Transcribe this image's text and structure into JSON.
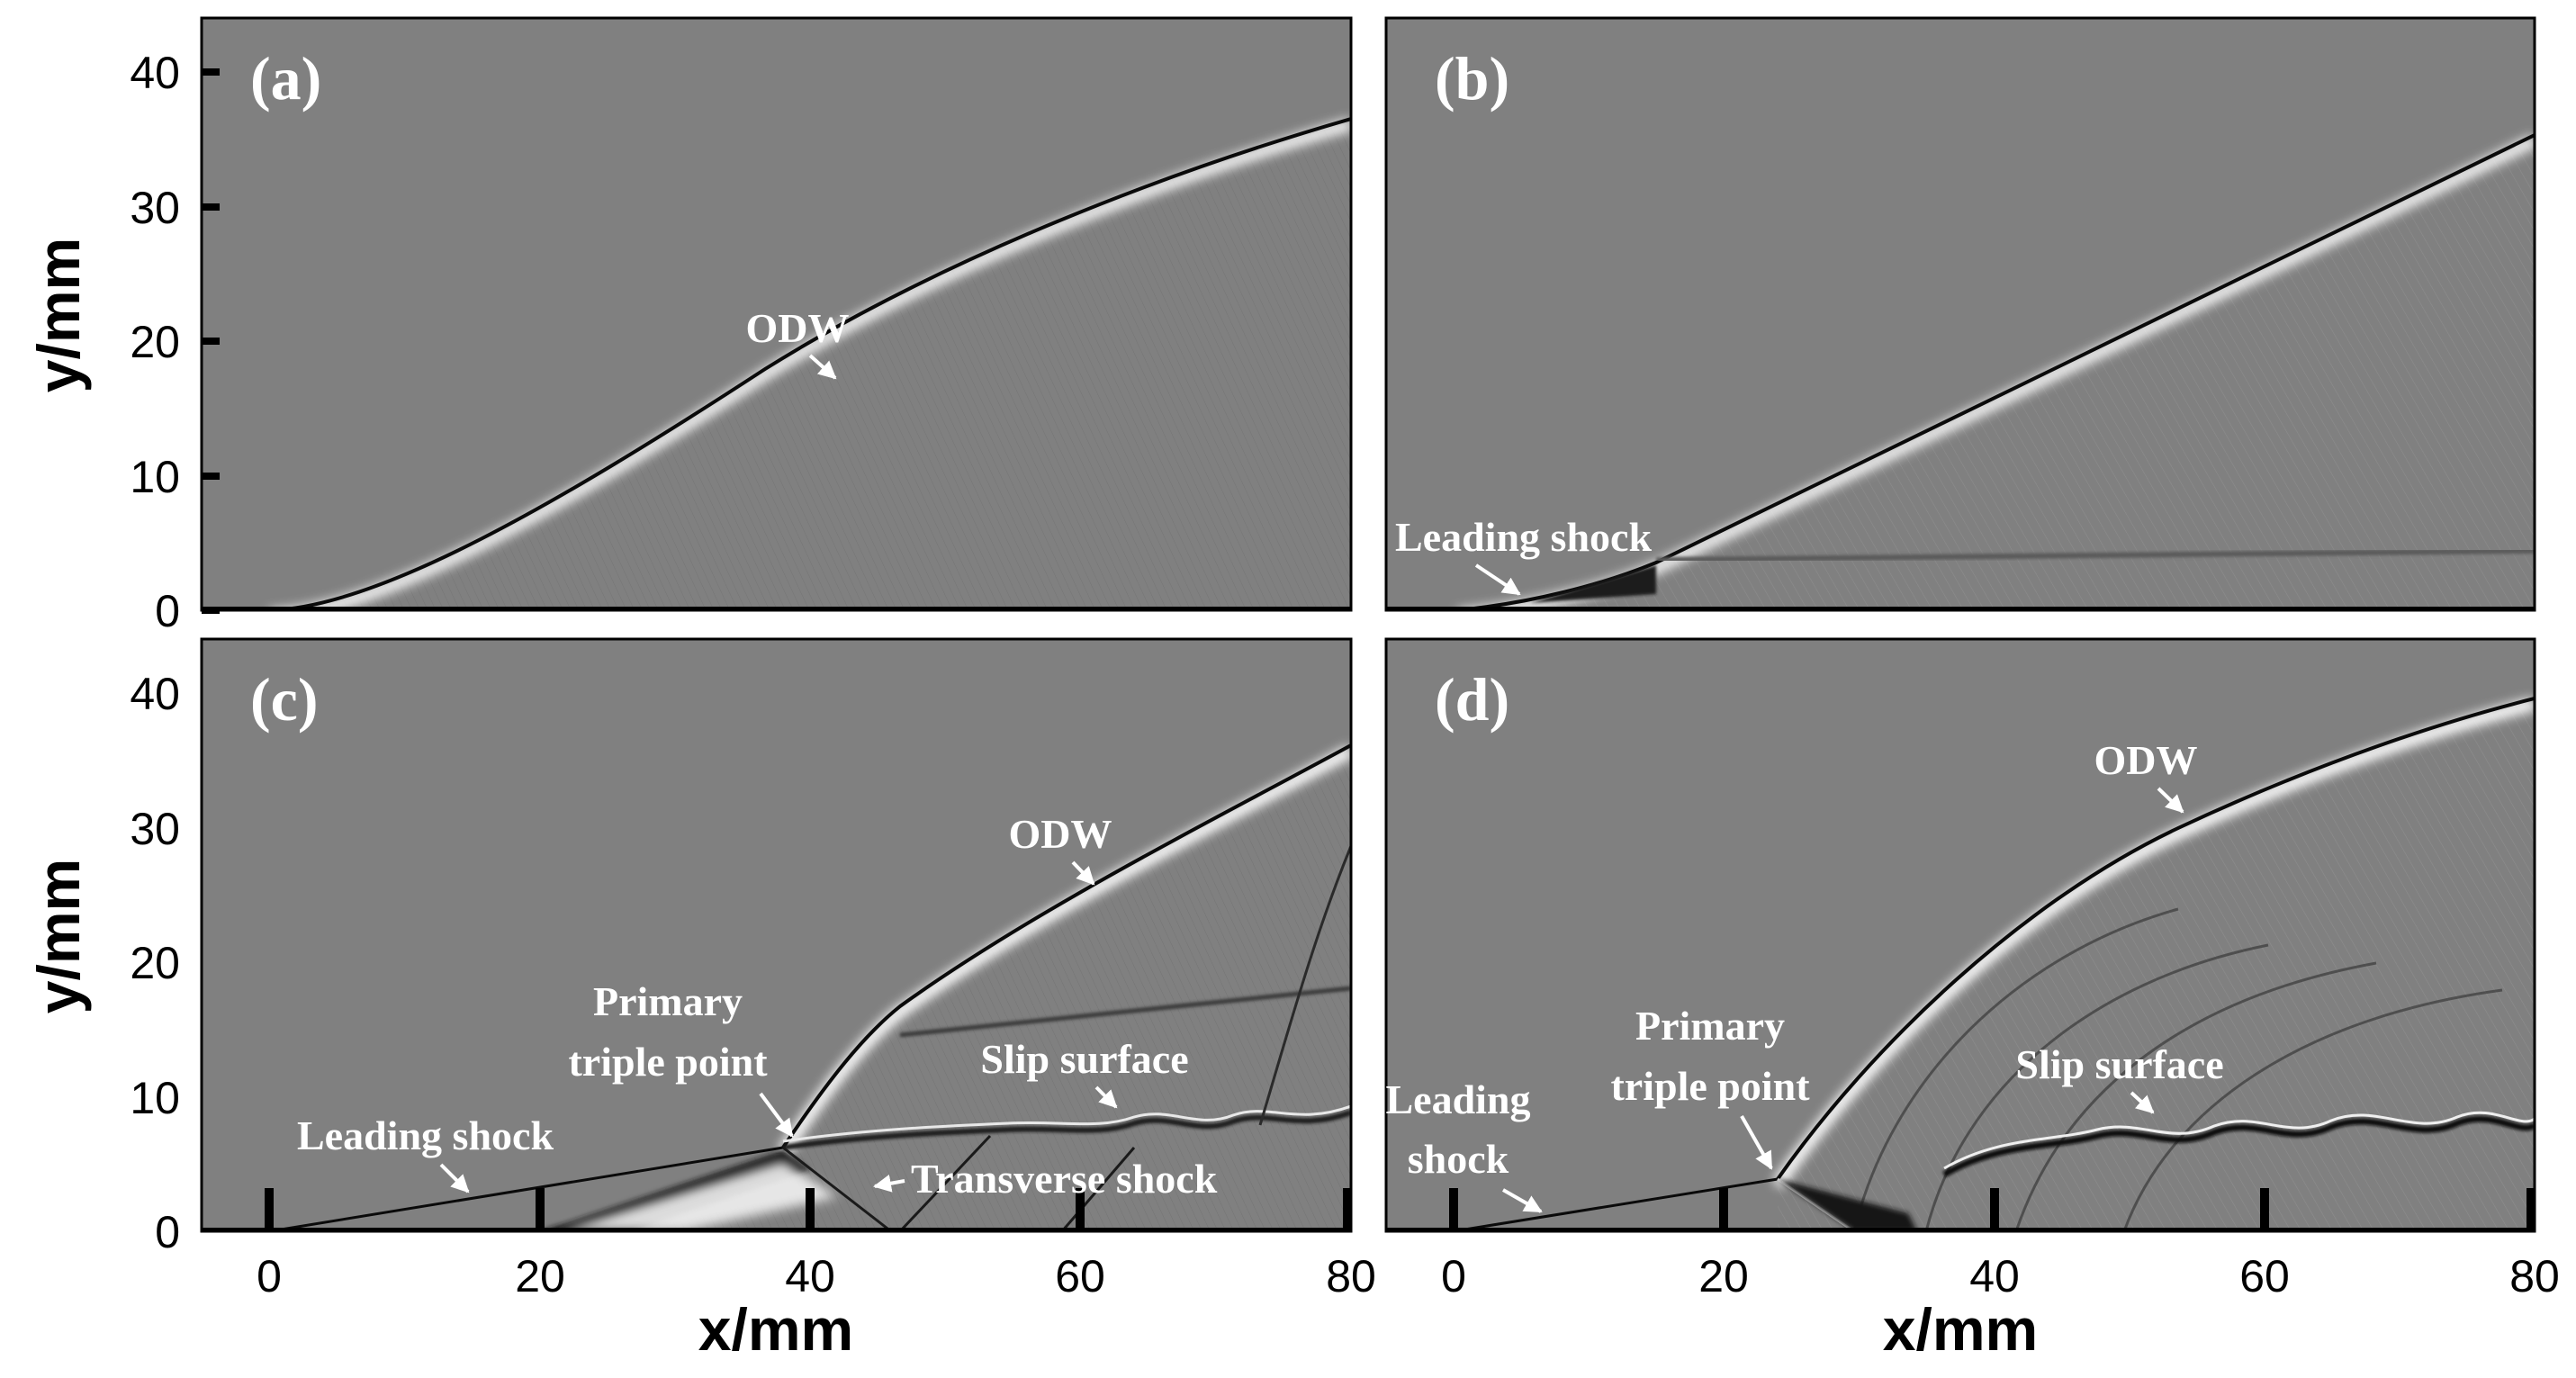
{
  "figure": {
    "axes": {
      "x_title": "x/mm",
      "y_title": "y/mm",
      "x_ticks": [
        "0",
        "20",
        "40",
        "60",
        "80"
      ],
      "y_ticks": [
        "0",
        "10",
        "20",
        "30",
        "40"
      ],
      "x_range": [
        -5,
        80
      ],
      "y_range": [
        0,
        44
      ]
    },
    "colors": {
      "background_field": "#808080",
      "shock_line": "#0a0a0a",
      "shock_glow": "#ffffff",
      "annotation": "#ffffff",
      "ground_ticks": "#000000"
    },
    "panels": [
      {
        "id": "a",
        "label": "(a)",
        "annotations": [
          {
            "text_lines": [
              "ODW"
            ]
          }
        ]
      },
      {
        "id": "b",
        "label": "(b)",
        "annotations": [
          {
            "text_lines": [
              "Leading shock"
            ]
          }
        ]
      },
      {
        "id": "c",
        "label": "(c)",
        "annotations": [
          {
            "text_lines": [
              "ODW"
            ]
          },
          {
            "text_lines": [
              "Primary",
              "triple point"
            ]
          },
          {
            "text_lines": [
              "Slip surface"
            ]
          },
          {
            "text_lines": [
              "Leading shock"
            ]
          },
          {
            "text_lines": [
              "Transverse shock"
            ]
          }
        ]
      },
      {
        "id": "d",
        "label": "(d)",
        "annotations": [
          {
            "text_lines": [
              "ODW"
            ]
          },
          {
            "text_lines": [
              "Primary",
              "triple point"
            ]
          },
          {
            "text_lines": [
              "Slip surface"
            ]
          },
          {
            "text_lines": [
              "Leading",
              "shock"
            ]
          }
        ]
      }
    ]
  }
}
